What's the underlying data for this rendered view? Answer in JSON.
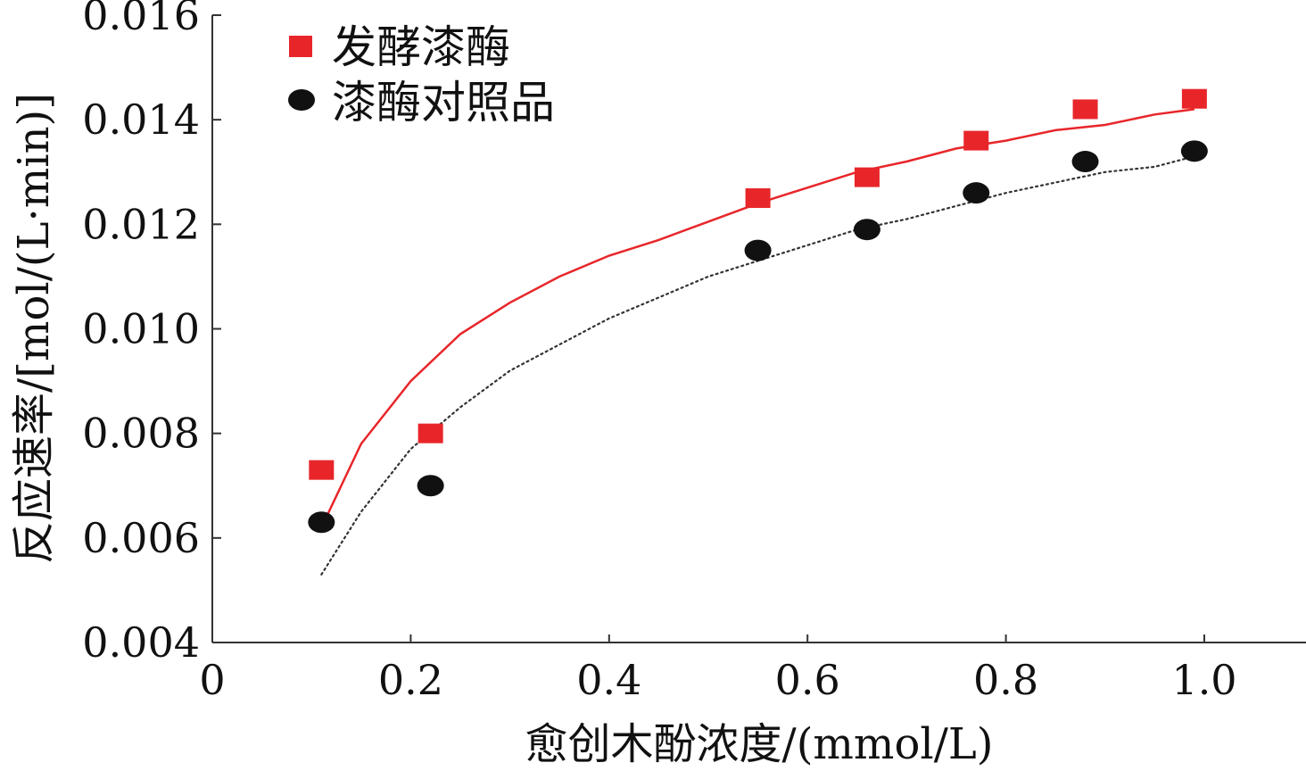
{
  "chart_data": {
    "type": "scatter",
    "title": "",
    "xlabel": "愈创木酚浓度/(mmol/L)",
    "ylabel": "反应速率/[mol/(L·min)]",
    "xlim": [
      0,
      1.1
    ],
    "ylim": [
      0.004,
      0.016
    ],
    "x_ticks": [
      0,
      0.2,
      0.4,
      0.6,
      0.8,
      1.0
    ],
    "x_tick_labels": [
      "0",
      "0.2",
      "0.4",
      "0.6",
      "0.8",
      "1.0"
    ],
    "y_ticks": [
      0.004,
      0.006,
      0.008,
      0.01,
      0.012,
      0.014,
      0.016
    ],
    "y_tick_labels": [
      "0.004",
      "0.006",
      "0.008",
      "0.010",
      "0.012",
      "0.014",
      "0.016"
    ],
    "grid": false,
    "legend_position": "top-left",
    "series": [
      {
        "name": "发酵漆酶",
        "marker": "square",
        "color": "#e8262a",
        "fit_line": "solid",
        "x": [
          0.11,
          0.22,
          0.55,
          0.66,
          0.77,
          0.88,
          0.99
        ],
        "y": [
          0.0073,
          0.008,
          0.0125,
          0.0129,
          0.0136,
          0.0142,
          0.0144
        ],
        "fit_x": [
          0.11,
          0.15,
          0.2,
          0.25,
          0.3,
          0.35,
          0.4,
          0.45,
          0.5,
          0.55,
          0.6,
          0.65,
          0.7,
          0.75,
          0.8,
          0.85,
          0.9,
          0.95,
          0.99
        ],
        "fit_y": [
          0.0062,
          0.0078,
          0.009,
          0.0099,
          0.0105,
          0.011,
          0.0114,
          0.0117,
          0.01205,
          0.0124,
          0.0127,
          0.013,
          0.0132,
          0.01345,
          0.0136,
          0.0138,
          0.0139,
          0.0141,
          0.0142
        ]
      },
      {
        "name": "漆酶对照品",
        "marker": "circle",
        "color": "#111111",
        "fit_line": "dotted",
        "x": [
          0.11,
          0.22,
          0.55,
          0.66,
          0.77,
          0.88,
          0.99
        ],
        "y": [
          0.0063,
          0.007,
          0.0115,
          0.0119,
          0.0126,
          0.0132,
          0.0134
        ],
        "fit_x": [
          0.11,
          0.15,
          0.2,
          0.25,
          0.3,
          0.35,
          0.4,
          0.45,
          0.5,
          0.55,
          0.6,
          0.65,
          0.7,
          0.75,
          0.8,
          0.85,
          0.9,
          0.95,
          0.99
        ],
        "fit_y": [
          0.0053,
          0.0065,
          0.0077,
          0.0085,
          0.0092,
          0.0097,
          0.0102,
          0.0106,
          0.011,
          0.0113,
          0.0116,
          0.0119,
          0.0121,
          0.01235,
          0.0126,
          0.0128,
          0.013,
          0.0131,
          0.0133
        ]
      }
    ]
  }
}
